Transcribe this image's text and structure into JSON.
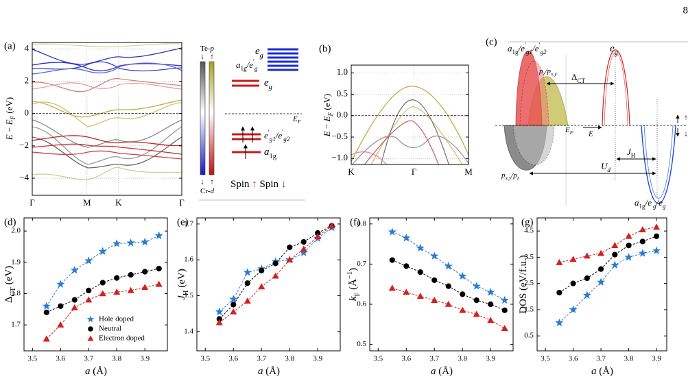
{
  "page_number": "8",
  "chart_data": [
    {
      "type": "bands",
      "panel_label": "(a)",
      "ylabel": [
        "E",
        " − ",
        "E",
        "F",
        " (eV)"
      ],
      "xlim": [
        0,
        2.732
      ],
      "xticks": [
        {
          "value": 0,
          "label": "Γ"
        },
        {
          "value": 1,
          "label": "M"
        },
        {
          "value": 1.577,
          "label": "K"
        },
        {
          "value": 2.732,
          "label": "Γ"
        }
      ],
      "ylim": [
        -5.06,
        4.4
      ],
      "yticks": [
        {
          "value": -4,
          "label": "−4"
        },
        {
          "value": -2,
          "label": "−2"
        },
        0,
        2,
        4
      ],
      "grid": true,
      "reference_line": 0
    },
    {
      "type": "bands",
      "panel_label": "(b)",
      "ylabel": [
        "E",
        " − ",
        "E",
        "F",
        " (eV)"
      ],
      "xlim": [
        0,
        2.155
      ],
      "xticks": [
        {
          "value": 0,
          "label": "K"
        },
        {
          "value": 1.155,
          "label": "Γ"
        },
        {
          "value": 2.155,
          "label": "M"
        }
      ],
      "ylim": [
        -1.14,
        1.18
      ],
      "yticks": [
        {
          "value": -1,
          "label": "−1.0"
        },
        {
          "value": -0.5,
          "label": "−0.5"
        },
        {
          "value": 0,
          "label": "0.0"
        },
        {
          "value": 0.5,
          "label": "0.5"
        },
        {
          "value": 1,
          "label": "1.0"
        }
      ],
      "grid": true,
      "reference_line": 0
    },
    {
      "type": "line",
      "panel_label": "(d)",
      "xlabel": [
        "a",
        " (Å)"
      ],
      "ylabel": [
        "Δ",
        "CT",
        " (eV)"
      ],
      "x": [
        3.55,
        3.6,
        3.65,
        3.7,
        3.75,
        3.8,
        3.85,
        3.9,
        3.95
      ],
      "xlim": [
        3.47,
        3.98
      ],
      "xticks": [
        3.5,
        3.6,
        3.7,
        3.8,
        3.9
      ],
      "ylim": [
        1.617,
        2.042
      ],
      "yticks": [
        1.7,
        1.8,
        1.9,
        {
          "value": 2,
          "label": "2.0"
        }
      ],
      "legend": "lower right",
      "series": [
        {
          "name": "Hole doped",
          "color": "#2b7bd1",
          "marker": "star",
          "values": [
            1.76,
            1.83,
            1.875,
            1.905,
            1.935,
            1.96,
            1.962,
            1.965,
            1.985
          ]
        },
        {
          "name": "Neutral",
          "color": "#000000",
          "marker": "circle",
          "values": [
            1.74,
            1.76,
            1.78,
            1.81,
            1.835,
            1.85,
            1.86,
            1.87,
            1.88
          ]
        },
        {
          "name": "Electron doped",
          "color": "#d42020",
          "marker": "triangle",
          "values": [
            1.655,
            1.7,
            1.755,
            1.78,
            1.8,
            1.805,
            1.81,
            1.82,
            1.83
          ]
        }
      ]
    },
    {
      "type": "line",
      "panel_label": "(e)",
      "xlabel": [
        "a",
        " (Å)"
      ],
      "ylabel": [
        "J",
        "H",
        " (eV)"
      ],
      "x": [
        3.55,
        3.6,
        3.65,
        3.7,
        3.75,
        3.8,
        3.85,
        3.9,
        3.95
      ],
      "xlim": [
        3.47,
        3.98
      ],
      "xticks": [
        3.5,
        3.6,
        3.7,
        3.8,
        3.9
      ],
      "ylim": [
        1.346,
        1.717
      ],
      "yticks": [
        1.4,
        1.5,
        1.6,
        1.7
      ],
      "series": [
        {
          "color": "#2b7bd1",
          "marker": "star",
          "values": [
            1.455,
            1.49,
            1.565,
            1.575,
            1.595,
            1.6,
            1.62,
            1.66,
            1.69
          ]
        },
        {
          "color": "#000000",
          "marker": "circle",
          "values": [
            1.435,
            1.475,
            1.535,
            1.57,
            1.59,
            1.635,
            1.65,
            1.675,
            1.695
          ]
        },
        {
          "color": "#d42020",
          "marker": "triangle",
          "values": [
            1.425,
            1.455,
            1.485,
            1.525,
            1.555,
            1.6,
            1.63,
            1.665,
            1.695
          ]
        }
      ]
    },
    {
      "type": "line",
      "panel_label": "(f)",
      "xlabel": [
        "a",
        " (Å)"
      ],
      "ylabel": [
        "k",
        "F",
        " (Å",
        "−1",
        ")"
      ],
      "x": [
        3.55,
        3.6,
        3.65,
        3.7,
        3.75,
        3.8,
        3.85,
        3.9,
        3.95
      ],
      "xlim": [
        3.47,
        3.98
      ],
      "xticks": [
        3.5,
        3.6,
        3.7,
        3.8,
        3.9
      ],
      "ylim": [
        0.484,
        0.815
      ],
      "yticks": [
        0.5,
        0.6,
        0.7,
        0.8
      ],
      "series": [
        {
          "color": "#2b7bd1",
          "marker": "star",
          "values": [
            0.78,
            0.765,
            0.74,
            0.72,
            0.695,
            0.67,
            0.645,
            0.63,
            0.61
          ]
        },
        {
          "color": "#000000",
          "marker": "circle",
          "values": [
            0.71,
            0.695,
            0.68,
            0.66,
            0.645,
            0.625,
            0.61,
            0.6,
            0.585
          ]
        },
        {
          "color": "#d42020",
          "marker": "triangle",
          "values": [
            0.64,
            0.63,
            0.62,
            0.61,
            0.6,
            0.585,
            0.575,
            0.56,
            0.54
          ]
        }
      ]
    },
    {
      "type": "line",
      "panel_label": "(g)",
      "xlabel": [
        "a",
        " (Å)"
      ],
      "ylabel": [
        "DOS (eV/f.u.)"
      ],
      "x": [
        3.55,
        3.6,
        3.65,
        3.7,
        3.75,
        3.8,
        3.85,
        3.9
      ],
      "xlim": [
        3.47,
        3.937
      ],
      "xticks": [
        3.5,
        3.6,
        3.7,
        3.8,
        3.9
      ],
      "ylim": [
        -0.07,
        5.0
      ],
      "yticks": [
        0.5,
        1.5,
        2.5,
        3.5,
        4.5
      ],
      "series": [
        {
          "color": "#2b7bd1",
          "marker": "star",
          "values": [
            1.0,
            1.5,
            2.05,
            2.55,
            3.2,
            3.5,
            3.65,
            3.75
          ]
        },
        {
          "color": "#000000",
          "marker": "circle",
          "values": [
            2.15,
            2.5,
            2.7,
            3.05,
            3.6,
            3.95,
            4.1,
            4.3
          ]
        },
        {
          "color": "#d42020",
          "marker": "triangle",
          "values": [
            3.3,
            3.42,
            3.55,
            3.65,
            3.95,
            4.3,
            4.55,
            4.65
          ]
        }
      ]
    }
  ],
  "colorbar": {
    "top_label": [
      "Te-",
      "p"
    ],
    "top_arrows": [
      "↓",
      "↑"
    ],
    "bottom_arrows": [
      "↓",
      "↑"
    ],
    "bottom_label": [
      "Cr-",
      "d"
    ]
  },
  "levels": {
    "eg_top": [
      "e",
      "g"
    ],
    "a1g_eg": [
      "a",
      "1g",
      "/e",
      "′",
      "g"
    ],
    "eg_mid": [
      "e",
      "g"
    ],
    "fermi": [
      "E",
      "F"
    ],
    "eg1_eg2": [
      "e",
      "′",
      "g1",
      "/e",
      "′",
      "g2"
    ],
    "a1g": [
      "a",
      "1g"
    ],
    "spin": [
      "Spin ",
      "↑",
      " Spin ",
      "↓"
    ]
  },
  "schematic": {
    "panel_label": "(c)",
    "a1g_label": [
      "a",
      "1g",
      "/e",
      "′",
      "g1",
      "/e",
      "′",
      "g2"
    ],
    "eg_label": [
      "e",
      "g"
    ],
    "p_upper": [
      "p",
      "z",
      "/p",
      "x,y"
    ],
    "delta_ct": [
      "Δ",
      "CT"
    ],
    "fermi": [
      "E",
      "F"
    ],
    "e_arrow": "E",
    "jh": [
      "J",
      "H"
    ],
    "ud": [
      "U",
      "d"
    ],
    "p_lower": [
      "p",
      "x,y",
      "/p",
      "z"
    ],
    "lower_right": [
      "a",
      "1g",
      "/e",
      "′",
      "g",
      "/e",
      "g"
    ],
    "spin_up": "↑",
    "spin_down": "↓"
  }
}
